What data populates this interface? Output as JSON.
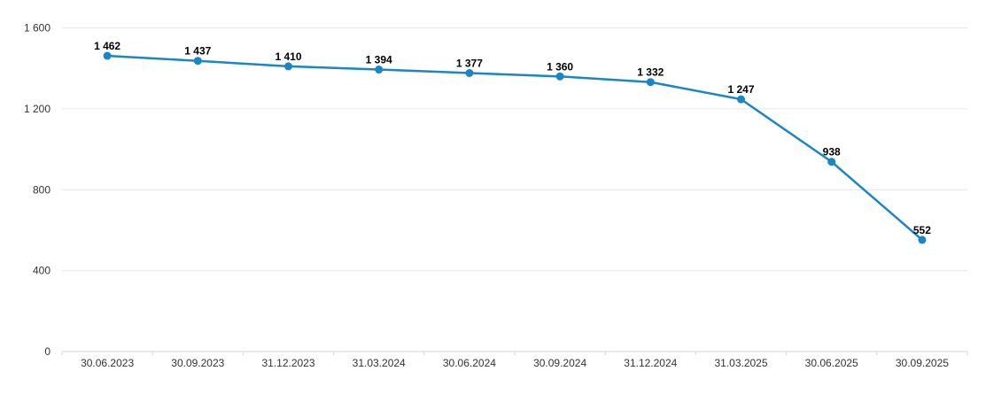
{
  "chart_data": {
    "type": "line",
    "title": "",
    "xlabel": "",
    "ylabel": "",
    "categories": [
      "30.06.2023",
      "30.09.2023",
      "31.12.2023",
      "31.03.2024",
      "30.06.2024",
      "30.09.2024",
      "31.12.2024",
      "31.03.2025",
      "30.06.2025",
      "30.09.2025"
    ],
    "series": [
      {
        "name": "value",
        "values": [
          1462,
          1437,
          1410,
          1394,
          1377,
          1360,
          1332,
          1247,
          938,
          552
        ],
        "labels": [
          "1 462",
          "1 437",
          "1 410",
          "1 394",
          "1 377",
          "1 360",
          "1 332",
          "1 247",
          "938",
          "552"
        ]
      }
    ],
    "ylim": [
      0,
      1600
    ],
    "yticks": [
      {
        "value": 0,
        "label": "0"
      },
      {
        "value": 400,
        "label": "400"
      },
      {
        "value": 800,
        "label": "800"
      },
      {
        "value": 1200,
        "label": "1 200"
      },
      {
        "value": 1600,
        "label": "1 600"
      }
    ],
    "grid": true,
    "legend": "none",
    "colors": {
      "line": "#1a86c6",
      "marker": "#1a86c6",
      "gridline": "#e6e6e6",
      "axis_line": "#d6d6d6",
      "tick": "#d6d6d6",
      "axis_text": "#333333",
      "data_label": "#000000",
      "background": "#ffffff"
    }
  }
}
